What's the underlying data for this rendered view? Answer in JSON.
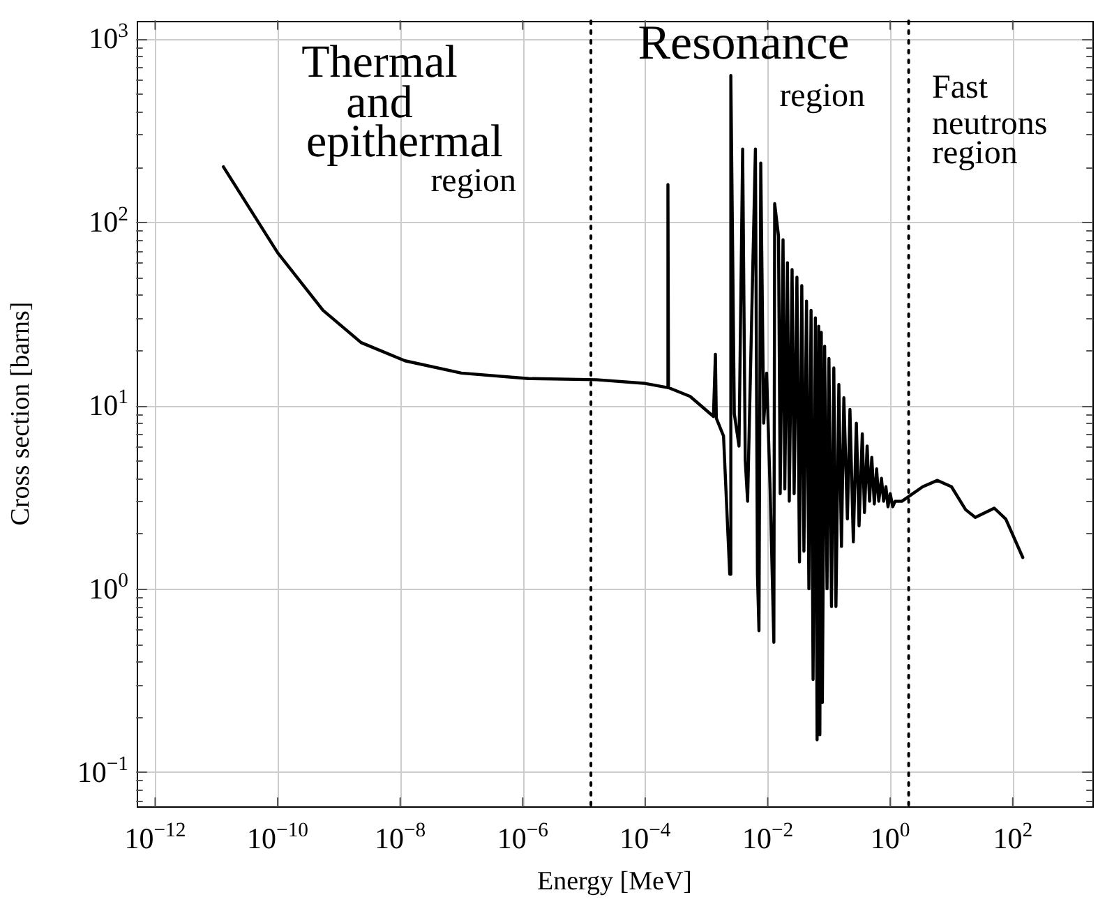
{
  "chart_data": {
    "type": "line",
    "xlabel": "Energy [MeV]",
    "ylabel": "Cross section [barns]",
    "xlim": [
      5e-13,
      2000
    ],
    "ylim": [
      0.065,
      1250
    ],
    "xticks": [
      {
        "value": 1e-12,
        "label": "10$^{−12}$"
      },
      {
        "value": 1e-10,
        "label": "10$^{−10}$"
      },
      {
        "value": 1e-08,
        "label": "10$^{−8}$"
      },
      {
        "value": 1e-06,
        "label": "10$^{−6}$"
      },
      {
        "value": 0.0001,
        "label": "10$^{−4}$"
      },
      {
        "value": 0.01,
        "label": "10$^{−2}$"
      },
      {
        "value": 1,
        "label": "10$^{0}$"
      },
      {
        "value": 100,
        "label": "10$^{2}$"
      }
    ],
    "yticks": [
      {
        "value": 0.07,
        "label": null
      },
      {
        "value": 0.08,
        "label": null
      },
      {
        "value": 0.09,
        "label": null
      },
      {
        "value": 0.1,
        "label": "10$^{−1}$"
      },
      {
        "value": 0.2,
        "label": null
      },
      {
        "value": 0.3,
        "label": null
      },
      {
        "value": 0.4,
        "label": null
      },
      {
        "value": 0.5,
        "label": null
      },
      {
        "value": 0.6,
        "label": null
      },
      {
        "value": 0.7,
        "label": null
      },
      {
        "value": 0.8,
        "label": null
      },
      {
        "value": 0.9,
        "label": null
      },
      {
        "value": 1,
        "label": "10$^{0}$"
      },
      {
        "value": 2,
        "label": null
      },
      {
        "value": 3,
        "label": null
      },
      {
        "value": 4,
        "label": null
      },
      {
        "value": 5,
        "label": null
      },
      {
        "value": 6,
        "label": null
      },
      {
        "value": 7,
        "label": null
      },
      {
        "value": 8,
        "label": null
      },
      {
        "value": 9,
        "label": null
      },
      {
        "value": 10,
        "label": "10$^{1}$"
      },
      {
        "value": 20,
        "label": null
      },
      {
        "value": 30,
        "label": null
      },
      {
        "value": 40,
        "label": null
      },
      {
        "value": 50,
        "label": null
      },
      {
        "value": 60,
        "label": null
      },
      {
        "value": 70,
        "label": null
      },
      {
        "value": 80,
        "label": null
      },
      {
        "value": 90,
        "label": null
      },
      {
        "value": 100,
        "label": "10$^{2}$"
      },
      {
        "value": 200,
        "label": null
      },
      {
        "value": 300,
        "label": null
      },
      {
        "value": 400,
        "label": null
      },
      {
        "value": 500,
        "label": null
      },
      {
        "value": 600,
        "label": null
      },
      {
        "value": 700,
        "label": null
      },
      {
        "value": 800,
        "label": null
      },
      {
        "value": 900,
        "label": null
      },
      {
        "value": 1000,
        "label": "10$^{3}$"
      }
    ],
    "log": "xy",
    "grid": true,
    "ref_lines": [
      {
        "axis": "x",
        "value": 1.3e-05,
        "color": "#000000",
        "line_style": "dotted"
      },
      {
        "axis": "x",
        "value": 2,
        "color": "#000000",
        "line_style": "dotted"
      }
    ],
    "annotations": [
      "Thermal\nand\nepithermal\nregion",
      "Resonance\nregion",
      "Fast\nneutrons\nregion"
    ],
    "series": [
      {
        "color": "#000000",
        "x": [
          1.3e-11,
          1e-10,
          5.5e-10,
          2.3e-09,
          1.2e-08,
          1e-07,
          1.25e-06,
          1.6e-05,
          9.5e-05,
          0.00023,
          0.000235,
          0.00024,
          0.00054,
          0.0013,
          0.0014,
          0.00145,
          0.0019,
          0.0024,
          0.0025,
          0.00285,
          0.0034,
          0.0039,
          0.0043,
          0.0047,
          0.0063,
          0.0068,
          0.0072,
          0.0077,
          0.0086,
          0.0096,
          0.011,
          0.0126,
          0.013,
          0.015,
          0.016,
          0.0178,
          0.019,
          0.021,
          0.0225,
          0.025,
          0.027,
          0.03,
          0.033,
          0.036,
          0.039,
          0.043,
          0.047,
          0.051,
          0.055,
          0.06,
          0.064,
          0.068,
          0.071,
          0.075,
          0.078,
          0.085,
          0.093,
          0.1,
          0.11,
          0.12,
          0.13,
          0.145,
          0.16,
          0.175,
          0.2,
          0.22,
          0.25,
          0.28,
          0.31,
          0.35,
          0.38,
          0.42,
          0.46,
          0.5,
          0.55,
          0.6,
          0.65,
          0.72,
          0.78,
          0.85,
          0.92,
          1,
          1.1,
          1.2,
          1.55,
          3.4,
          5.9,
          10,
          17,
          24.5,
          50,
          77,
          146
        ],
        "values": [
          200,
          68,
          33,
          22,
          17.5,
          15,
          14,
          13.8,
          13.2,
          12.5,
          160,
          12.5,
          11.2,
          8.7,
          19,
          8.5,
          6.8,
          1.2,
          630,
          9,
          6,
          250,
          5,
          3,
          250,
          1.2,
          0.59,
          210,
          8,
          15,
          3.3,
          0.51,
          126,
          84,
          3.3,
          80,
          3.5,
          60,
          3,
          55,
          3.3,
          50,
          1.4,
          45,
          1.6,
          37,
          1,
          33,
          0.32,
          30,
          0.15,
          27,
          0.16,
          25,
          0.24,
          21,
          1,
          18,
          0.8,
          16,
          0.8,
          13,
          1.7,
          11,
          2.4,
          9.5,
          1.8,
          8,
          2.2,
          7,
          2.6,
          6,
          3,
          5.2,
          2.9,
          4.5,
          3,
          4,
          3,
          3.6,
          2.8,
          3.3,
          2.8,
          3,
          3,
          3.6,
          3.9,
          3.6,
          2.7,
          2.45,
          2.75,
          2.4,
          1.48
        ]
      }
    ]
  }
}
